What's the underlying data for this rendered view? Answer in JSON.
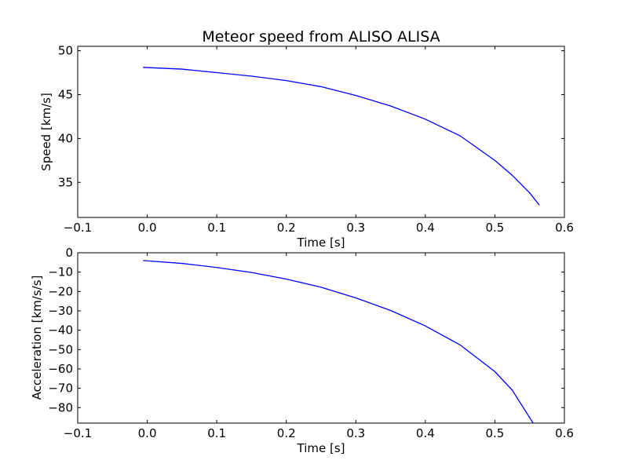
{
  "chart_data": [
    {
      "type": "line",
      "title": "Meteor speed from  ALISO ALISA",
      "xlabel": "Time [s]",
      "ylabel": "Speed [km/s]",
      "xlim": [
        -0.1,
        0.6
      ],
      "ylim": [
        31,
        50.5
      ],
      "xticks": [
        -0.1,
        0.0,
        0.1,
        0.2,
        0.3,
        0.4,
        0.5,
        0.6
      ],
      "xtick_labels": [
        "−0.1",
        "0.0",
        "0.1",
        "0.2",
        "0.3",
        "0.4",
        "0.5",
        "0.6"
      ],
      "yticks": [
        35,
        40,
        45,
        50
      ],
      "ytick_labels": [
        "35",
        "40",
        "45",
        "50"
      ],
      "grid": false,
      "color": "#0000ff",
      "series": [
        {
          "x": [
            -0.006,
            0.05,
            0.1,
            0.15,
            0.2,
            0.25,
            0.3,
            0.35,
            0.4,
            0.45,
            0.5,
            0.525,
            0.55,
            0.564
          ],
          "y": [
            48.1,
            47.9,
            47.5,
            47.1,
            46.6,
            45.9,
            44.9,
            43.7,
            42.2,
            40.3,
            37.5,
            35.8,
            33.8,
            32.4
          ]
        }
      ]
    },
    {
      "type": "line",
      "title": "",
      "xlabel": "Time [s]",
      "ylabel": "Acceleration [km/s/s]",
      "xlim": [
        -0.1,
        0.6
      ],
      "ylim": [
        -88,
        0
      ],
      "xticks": [
        -0.1,
        0.0,
        0.1,
        0.2,
        0.3,
        0.4,
        0.5,
        0.6
      ],
      "xtick_labels": [
        "−0.1",
        "0.0",
        "0.1",
        "0.2",
        "0.3",
        "0.4",
        "0.5",
        "0.6"
      ],
      "yticks": [
        0,
        -10,
        -20,
        -30,
        -40,
        -50,
        -60,
        -70,
        -80
      ],
      "ytick_labels": [
        "0",
        "−10",
        "−20",
        "−30",
        "−40",
        "−50",
        "−60",
        "−70",
        "−80"
      ],
      "grid": false,
      "color": "#0000ff",
      "series": [
        {
          "x": [
            -0.006,
            0.05,
            0.1,
            0.15,
            0.2,
            0.25,
            0.3,
            0.35,
            0.4,
            0.45,
            0.5,
            0.525,
            0.555
          ],
          "y": [
            -4.0,
            -5.5,
            -7.6,
            -10.2,
            -13.6,
            -17.8,
            -23.3,
            -29.8,
            -37.8,
            -47.6,
            -61.4,
            -71.0,
            -88.0
          ]
        }
      ]
    }
  ]
}
